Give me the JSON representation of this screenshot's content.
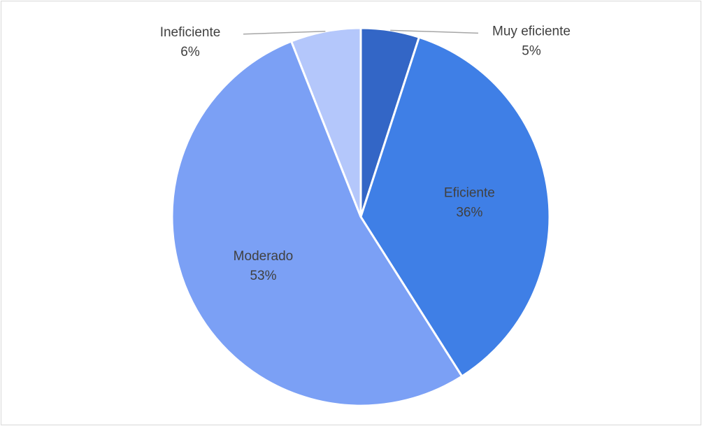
{
  "chart_data": {
    "type": "pie",
    "categories": [
      "Muy eficiente",
      "Eficiente",
      "Moderado",
      "Ineficiente"
    ],
    "values": [
      5,
      36,
      53,
      6
    ],
    "value_labels": [
      "5%",
      "36%",
      "53%",
      "6%"
    ],
    "colors": [
      "#3366c6",
      "#3f7fe6",
      "#7ba0f5",
      "#b4c7fb"
    ]
  }
}
